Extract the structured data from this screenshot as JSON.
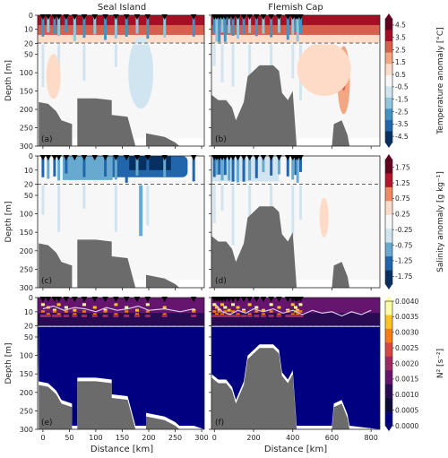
{
  "figure": {
    "column_titles": [
      "Seal Island",
      "Flemish Cap"
    ],
    "panel_labels": [
      "(a)",
      "(b)",
      "(c)",
      "(d)",
      "(e)",
      "(f)"
    ],
    "ylabel": "Depth [m]",
    "xlabel": "Distance [km]",
    "depth_ticks_upper": [
      0,
      10,
      20
    ],
    "depth_ticks_lower": [
      50,
      100,
      150,
      200,
      250,
      300
    ]
  },
  "colors": {
    "land": "#6b6b6b",
    "mixed_layer_line": "#000000",
    "n2_line": "#d8c8e8",
    "station_marker": "#000000"
  },
  "colorbars": [
    {
      "id": "temperature",
      "label": "Temperature anomaly [°C]",
      "ticks": [
        "4.5",
        "3.5",
        "2.5",
        "1.5",
        "0.5",
        "-0.5",
        "-1.5",
        "-2.5",
        "-3.5",
        "-4.5"
      ],
      "colors": [
        "#67001f",
        "#a50f26",
        "#d6604d",
        "#f4a582",
        "#fddbc7",
        "#f7f7f7",
        "#d1e5f0",
        "#92c5de",
        "#4393c3",
        "#2166ac",
        "#053061"
      ]
    },
    {
      "id": "salinity",
      "label": "Salinity anomaly [g kg⁻¹]",
      "ticks": [
        "1.75",
        "1.25",
        "0.75",
        "0.25",
        "-0.25",
        "-0.75",
        "-1.25",
        "-1.75"
      ],
      "colors": [
        "#67001f",
        "#b2182b",
        "#ef8a62",
        "#fddbc7",
        "#f7f7f7",
        "#d1e5f0",
        "#67a9cf",
        "#2166ac",
        "#053061"
      ]
    },
    {
      "id": "n2",
      "label": "N² [s⁻²]",
      "ticks": [
        "0.0040",
        "0.0035",
        "0.0030",
        "0.0025",
        "0.0020",
        "0.0015",
        "0.0010",
        "0.0005",
        "0.0000"
      ],
      "colors": [
        "#fcffa4",
        "#fac228",
        "#f57d15",
        "#d44842",
        "#9f2a63",
        "#65156e",
        "#280b53",
        "#0d0a38",
        "#000080"
      ]
    }
  ],
  "chart_data": [
    {
      "panel": "(a)",
      "section": "Seal Island",
      "variable": "Temperature anomaly",
      "type": "heatmap",
      "xticks": [
        0,
        50,
        100,
        150,
        200,
        250,
        300
      ],
      "xlim": [
        -10,
        305
      ],
      "ylim": [
        300,
        0
      ],
      "axis_break_depth": 20,
      "mixed_layer_depth": 20,
      "stations_km": [
        0,
        10,
        22,
        30,
        44,
        60,
        78,
        98,
        118,
        138,
        158,
        178,
        198,
        230,
        285
      ],
      "bathymetry": [
        [
          -8,
          20
        ],
        [
          -8,
          180
        ],
        [
          10,
          185
        ],
        [
          25,
          205
        ],
        [
          35,
          230
        ],
        [
          55,
          240
        ],
        [
          55,
          300
        ],
        [
          65,
          300
        ],
        [
          65,
          170
        ],
        [
          100,
          170
        ],
        [
          130,
          175
        ],
        [
          130,
          215
        ],
        [
          160,
          220
        ],
        [
          175,
          300
        ],
        [
          195,
          300
        ],
        [
          195,
          265
        ],
        [
          230,
          275
        ],
        [
          250,
          290
        ],
        [
          258,
          300
        ],
        [
          285,
          300
        ],
        [
          285,
          300
        ]
      ]
    },
    {
      "panel": "(b)",
      "section": "Flemish Cap",
      "variable": "Temperature anomaly",
      "type": "heatmap",
      "xticks": [
        0,
        200,
        400,
        600,
        800
      ],
      "xlim": [
        -15,
        845
      ],
      "ylim": [
        300,
        0
      ],
      "axis_break_depth": 20,
      "mixed_layer_depth": 20,
      "stations_km": [
        0,
        12,
        25,
        40,
        55,
        75,
        95,
        120,
        150,
        180,
        215,
        250,
        290,
        330,
        375,
        400,
        415,
        425,
        440
      ],
      "bathymetry": [
        [
          -15,
          160
        ],
        [
          20,
          175
        ],
        [
          60,
          175
        ],
        [
          90,
          195
        ],
        [
          110,
          230
        ],
        [
          150,
          180
        ],
        [
          170,
          110
        ],
        [
          230,
          80
        ],
        [
          300,
          80
        ],
        [
          330,
          95
        ],
        [
          345,
          155
        ],
        [
          375,
          175
        ],
        [
          400,
          150
        ],
        [
          420,
          300
        ],
        [
          600,
          300
        ],
        [
          610,
          240
        ],
        [
          650,
          230
        ],
        [
          680,
          270
        ],
        [
          690,
          300
        ]
      ]
    },
    {
      "panel": "(c)",
      "section": "Seal Island",
      "variable": "Salinity anomaly",
      "type": "heatmap",
      "xticks": [
        0,
        50,
        100,
        150,
        200,
        250,
        300
      ],
      "xlim": [
        -10,
        305
      ],
      "ylim": [
        300,
        0
      ],
      "axis_break_depth": 20,
      "mixed_layer_depth": 20,
      "stations_km": [
        0,
        10,
        22,
        30,
        44,
        60,
        78,
        98,
        118,
        138,
        158,
        178,
        198,
        230,
        285
      ],
      "bathymetry": [
        [
          -8,
          20
        ],
        [
          -8,
          180
        ],
        [
          10,
          185
        ],
        [
          25,
          205
        ],
        [
          35,
          230
        ],
        [
          55,
          240
        ],
        [
          55,
          300
        ],
        [
          65,
          300
        ],
        [
          65,
          170
        ],
        [
          100,
          170
        ],
        [
          130,
          175
        ],
        [
          130,
          215
        ],
        [
          160,
          220
        ],
        [
          175,
          300
        ],
        [
          195,
          300
        ],
        [
          195,
          265
        ],
        [
          230,
          275
        ],
        [
          250,
          290
        ],
        [
          258,
          300
        ],
        [
          285,
          300
        ],
        [
          285,
          300
        ]
      ]
    },
    {
      "panel": "(d)",
      "section": "Flemish Cap",
      "variable": "Salinity anomaly",
      "type": "heatmap",
      "xticks": [
        0,
        200,
        400,
        600,
        800
      ],
      "xlim": [
        -15,
        845
      ],
      "ylim": [
        300,
        0
      ],
      "axis_break_depth": 20,
      "mixed_layer_depth": 20,
      "stations_km": [
        0,
        12,
        25,
        40,
        55,
        75,
        95,
        120,
        150,
        180,
        215,
        250,
        290,
        330,
        375,
        400,
        415,
        425,
        440
      ],
      "bathymetry": [
        [
          -15,
          160
        ],
        [
          20,
          175
        ],
        [
          60,
          175
        ],
        [
          90,
          195
        ],
        [
          110,
          230
        ],
        [
          150,
          180
        ],
        [
          170,
          110
        ],
        [
          230,
          80
        ],
        [
          300,
          80
        ],
        [
          330,
          95
        ],
        [
          345,
          155
        ],
        [
          375,
          175
        ],
        [
          400,
          150
        ],
        [
          420,
          300
        ],
        [
          600,
          300
        ],
        [
          610,
          240
        ],
        [
          650,
          230
        ],
        [
          680,
          270
        ],
        [
          690,
          300
        ]
      ]
    },
    {
      "panel": "(e)",
      "section": "Seal Island",
      "variable": "N²",
      "type": "heatmap",
      "xticks": [
        0,
        50,
        100,
        150,
        200,
        250,
        300
      ],
      "xlim": [
        -10,
        305
      ],
      "ylim": [
        300,
        0
      ],
      "axis_break_depth": 20,
      "mixed_layer_depth": 20,
      "stations_km": [
        0,
        10,
        22,
        30,
        44,
        60,
        78,
        98,
        118,
        138,
        158,
        178,
        198,
        230,
        285
      ],
      "n2_max_depth": [
        [
          0,
          8
        ],
        [
          20,
          6
        ],
        [
          40,
          9
        ],
        [
          60,
          7
        ],
        [
          80,
          8
        ],
        [
          100,
          10
        ],
        [
          120,
          7
        ],
        [
          140,
          9
        ],
        [
          160,
          8
        ],
        [
          180,
          6
        ],
        [
          200,
          9
        ],
        [
          230,
          8
        ],
        [
          260,
          10
        ],
        [
          285,
          8
        ]
      ],
      "bathymetry": [
        [
          -8,
          20
        ],
        [
          -8,
          180
        ],
        [
          10,
          185
        ],
        [
          25,
          205
        ],
        [
          35,
          230
        ],
        [
          55,
          240
        ],
        [
          55,
          300
        ],
        [
          65,
          300
        ],
        [
          65,
          170
        ],
        [
          100,
          170
        ],
        [
          130,
          175
        ],
        [
          130,
          215
        ],
        [
          160,
          220
        ],
        [
          175,
          300
        ],
        [
          195,
          300
        ],
        [
          195,
          265
        ],
        [
          230,
          275
        ],
        [
          250,
          290
        ],
        [
          258,
          300
        ],
        [
          285,
          300
        ],
        [
          285,
          300
        ]
      ]
    },
    {
      "panel": "(f)",
      "section": "Flemish Cap",
      "variable": "N²",
      "type": "heatmap",
      "xticks": [
        0,
        200,
        400,
        600,
        800
      ],
      "xlim": [
        -15,
        845
      ],
      "ylim": [
        300,
        0
      ],
      "axis_break_depth": 20,
      "mixed_layer_depth": 20,
      "stations_km": [
        0,
        12,
        25,
        40,
        55,
        75,
        95,
        120,
        150,
        180,
        215,
        250,
        290,
        330,
        375,
        400,
        415,
        425,
        440
      ],
      "n2_max_depth": [
        [
          0,
          4
        ],
        [
          40,
          10
        ],
        [
          80,
          12
        ],
        [
          120,
          9
        ],
        [
          160,
          11
        ],
        [
          200,
          8
        ],
        [
          250,
          10
        ],
        [
          300,
          8
        ],
        [
          350,
          11
        ],
        [
          400,
          9
        ],
        [
          450,
          12
        ],
        [
          500,
          9
        ],
        [
          550,
          11
        ],
        [
          600,
          10
        ],
        [
          650,
          13
        ],
        [
          700,
          10
        ],
        [
          750,
          12
        ],
        [
          800,
          9
        ]
      ],
      "bathymetry": [
        [
          -15,
          160
        ],
        [
          20,
          175
        ],
        [
          60,
          175
        ],
        [
          90,
          195
        ],
        [
          110,
          230
        ],
        [
          150,
          180
        ],
        [
          170,
          110
        ],
        [
          230,
          80
        ],
        [
          300,
          80
        ],
        [
          330,
          95
        ],
        [
          345,
          155
        ],
        [
          375,
          175
        ],
        [
          400,
          150
        ],
        [
          420,
          300
        ],
        [
          600,
          300
        ],
        [
          610,
          240
        ],
        [
          650,
          230
        ],
        [
          680,
          270
        ],
        [
          690,
          300
        ]
      ]
    }
  ]
}
